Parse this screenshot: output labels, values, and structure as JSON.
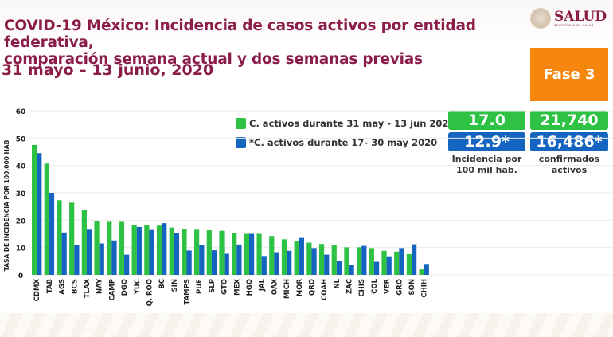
{
  "header": {
    "title_line1": "COVID-19 México: Incidencia de casos activos por entidad federativa,",
    "title_line2": "comparación semana actual y dos semanas previas",
    "date_range": "31 mayo – 13 junio, 2020",
    "logo_text": "SALUD",
    "logo_subtext": "SECRETARÍA DE SALUD",
    "phase_badge": "Fase 3"
  },
  "summary": {
    "current_incidence": "17.0",
    "current_active": "21,740",
    "previous_incidence": "12.9*",
    "previous_active": "16,486*",
    "incidence_caption_line1": "Incidencia por",
    "incidence_caption_line2": "100 mil hab.",
    "active_caption_line1": "confirmados",
    "active_caption_line2": "activos"
  },
  "colors": {
    "current": "#2ec245",
    "previous": "#1565c0",
    "title": "#8b1d4b",
    "phase": "#f7860e"
  },
  "chart_data": {
    "type": "bar",
    "title": "COVID-19 México: Incidencia de casos activos por entidad federativa, comparación semana actual y dos semanas previas",
    "xlabel": "",
    "ylabel": "TASA DE INCIDENCIA POR 100,000 HAB",
    "ylim": [
      0,
      60
    ],
    "yticks": [
      0,
      10,
      20,
      30,
      40,
      50,
      60
    ],
    "grid": true,
    "legend_position": "top-right",
    "categories": [
      "CDMX",
      "TAB",
      "AGS",
      "BCS",
      "TLAX",
      "NAY",
      "CAMP",
      "DGO",
      "YUC",
      "Q. ROO",
      "BC",
      "SIN",
      "TAMPS",
      "PUE",
      "SLP",
      "GTO",
      "MEX",
      "HGO",
      "JAL",
      "OAX",
      "MICH",
      "MOR",
      "QRO",
      "COAH",
      "NL",
      "ZAC",
      "CHIS",
      "COL",
      "VER",
      "GRO",
      "SON",
      "CHIH"
    ],
    "series": [
      {
        "name": "C. activos durante 31 may - 13 jun 2020",
        "color": "#2ec245",
        "values": [
          47.5,
          40.7,
          27.3,
          26.4,
          23.7,
          19.6,
          19.4,
          19.4,
          18.3,
          18.3,
          18.0,
          17.3,
          16.7,
          16.5,
          16.3,
          16.1,
          15.3,
          15.0,
          15.0,
          14.2,
          13.0,
          12.5,
          11.8,
          11.3,
          11.0,
          10.1,
          10.1,
          9.8,
          8.8,
          8.5,
          7.6,
          2.0
        ]
      },
      {
        "name": "*C. activos durante  17- 30 may 2020",
        "color": "#1565c0",
        "values": [
          44.5,
          30.0,
          15.5,
          11.0,
          16.5,
          11.5,
          12.6,
          7.4,
          17.5,
          16.4,
          18.9,
          15.4,
          8.9,
          11.0,
          9.0,
          7.7,
          11.1,
          15.0,
          6.9,
          8.3,
          8.8,
          13.5,
          9.8,
          7.4,
          5.0,
          3.7,
          10.6,
          4.8,
          6.8,
          9.8,
          11.2,
          4.0
        ]
      }
    ]
  }
}
